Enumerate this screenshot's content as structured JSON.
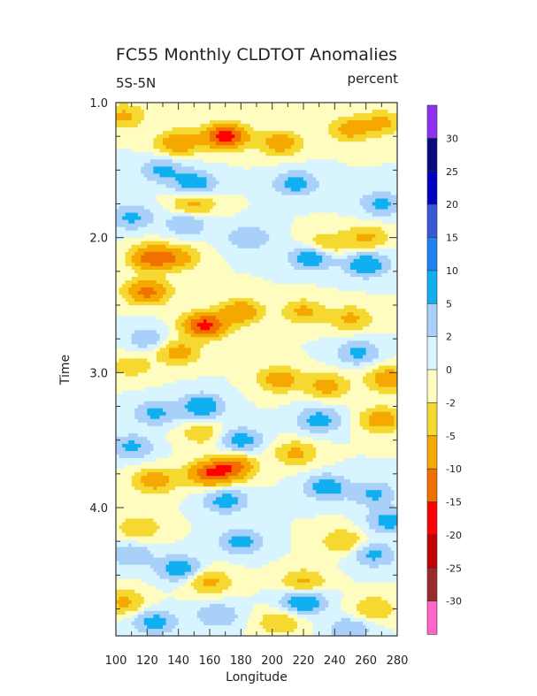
{
  "chart_data": {
    "type": "heatmap",
    "title": "FC55 Monthly CLDTOT Anomalies",
    "region_label": "5S-5N",
    "units_label": "percent",
    "xlabel": "Longitude",
    "ylabel": "Time",
    "xlim": [
      100,
      280
    ],
    "ylim": [
      1.0,
      4.95
    ],
    "y_inverted": true,
    "x_ticks": [
      "100",
      "120",
      "140",
      "160",
      "180",
      "200",
      "220",
      "240",
      "260",
      "280"
    ],
    "y_ticks": [
      "1.0",
      "2.0",
      "3.0",
      "4.0"
    ],
    "colorbar": {
      "labels": [
        "-30",
        "-25",
        "-20",
        "-15",
        "-10",
        "-5",
        "-2",
        "0",
        "2",
        "5",
        "10",
        "15",
        "20",
        "25",
        "30"
      ],
      "levels": [
        -30,
        -25,
        -20,
        -15,
        -10,
        -5,
        -2,
        0,
        2,
        5,
        10,
        15,
        20,
        25,
        30
      ],
      "colors_low_to_high": [
        "#ff66cc",
        "#9b2a2a",
        "#c40000",
        "#ff0000",
        "#f07000",
        "#f5a800",
        "#f5d830",
        "#fffcc0",
        "#d8f4ff",
        "#a8d0f8",
        "#10b0f0",
        "#2080f0",
        "#3858d8",
        "#0000c0",
        "#0a0a80",
        "#9030f0"
      ]
    },
    "features": [
      {
        "lon": 170,
        "time": 1.25,
        "value": -18
      },
      {
        "lon": 157,
        "time": 2.65,
        "value": -17
      },
      {
        "lon": 123,
        "time": 2.15,
        "value": -13
      },
      {
        "lon": 120,
        "time": 2.4,
        "value": -12
      },
      {
        "lon": 160,
        "time": 3.75,
        "value": -14
      },
      {
        "lon": 175,
        "time": 3.7,
        "value": -12
      },
      {
        "lon": 140,
        "time": 1.3,
        "value": -9
      },
      {
        "lon": 205,
        "time": 1.3,
        "value": -8
      },
      {
        "lon": 250,
        "time": 1.2,
        "value": -7
      },
      {
        "lon": 150,
        "time": 1.75,
        "value": -6
      },
      {
        "lon": 105,
        "time": 1.1,
        "value": -6
      },
      {
        "lon": 270,
        "time": 1.15,
        "value": -6
      },
      {
        "lon": 140,
        "time": 2.15,
        "value": -7
      },
      {
        "lon": 180,
        "time": 2.55,
        "value": -9
      },
      {
        "lon": 220,
        "time": 2.55,
        "value": -6
      },
      {
        "lon": 250,
        "time": 2.6,
        "value": -6
      },
      {
        "lon": 140,
        "time": 2.85,
        "value": -7
      },
      {
        "lon": 205,
        "time": 3.05,
        "value": -8
      },
      {
        "lon": 235,
        "time": 3.1,
        "value": -7
      },
      {
        "lon": 275,
        "time": 3.05,
        "value": -9
      },
      {
        "lon": 270,
        "time": 3.35,
        "value": -8
      },
      {
        "lon": 125,
        "time": 3.8,
        "value": -8
      },
      {
        "lon": 215,
        "time": 3.6,
        "value": -6
      },
      {
        "lon": 115,
        "time": 4.15,
        "value": -5
      },
      {
        "lon": 245,
        "time": 4.25,
        "value": -5
      },
      {
        "lon": 160,
        "time": 4.55,
        "value": -6
      },
      {
        "lon": 220,
        "time": 4.55,
        "value": -6
      },
      {
        "lon": 105,
        "time": 4.7,
        "value": -6
      },
      {
        "lon": 265,
        "time": 4.75,
        "value": -5
      },
      {
        "lon": 205,
        "time": 4.85,
        "value": -5
      },
      {
        "lon": 260,
        "time": 2.0,
        "value": -6
      },
      {
        "lon": 235,
        "time": 2.05,
        "value": -5
      },
      {
        "lon": 110,
        "time": 2.95,
        "value": -4
      },
      {
        "lon": 155,
        "time": 3.45,
        "value": -4
      },
      {
        "lon": 150,
        "time": 1.6,
        "value": 8
      },
      {
        "lon": 215,
        "time": 1.6,
        "value": 7
      },
      {
        "lon": 130,
        "time": 1.5,
        "value": 6
      },
      {
        "lon": 110,
        "time": 1.85,
        "value": 6
      },
      {
        "lon": 145,
        "time": 1.9,
        "value": 5
      },
      {
        "lon": 225,
        "time": 2.15,
        "value": 8
      },
      {
        "lon": 260,
        "time": 2.2,
        "value": 9
      },
      {
        "lon": 270,
        "time": 1.75,
        "value": 6
      },
      {
        "lon": 185,
        "time": 2.0,
        "value": 5
      },
      {
        "lon": 255,
        "time": 2.85,
        "value": 6
      },
      {
        "lon": 120,
        "time": 2.75,
        "value": 4
      },
      {
        "lon": 155,
        "time": 3.25,
        "value": 9
      },
      {
        "lon": 125,
        "time": 3.3,
        "value": 6
      },
      {
        "lon": 230,
        "time": 3.35,
        "value": 7
      },
      {
        "lon": 180,
        "time": 3.5,
        "value": 7
      },
      {
        "lon": 110,
        "time": 3.55,
        "value": 6
      },
      {
        "lon": 235,
        "time": 3.85,
        "value": 8
      },
      {
        "lon": 170,
        "time": 3.95,
        "value": 7
      },
      {
        "lon": 265,
        "time": 3.9,
        "value": 6
      },
      {
        "lon": 180,
        "time": 4.25,
        "value": 7
      },
      {
        "lon": 140,
        "time": 4.45,
        "value": 8
      },
      {
        "lon": 265,
        "time": 4.35,
        "value": 6
      },
      {
        "lon": 275,
        "time": 4.1,
        "value": 7
      },
      {
        "lon": 220,
        "time": 4.7,
        "value": 9
      },
      {
        "lon": 125,
        "time": 4.85,
        "value": 7
      },
      {
        "lon": 110,
        "time": 4.35,
        "value": 5
      },
      {
        "lon": 250,
        "time": 4.9,
        "value": 5
      },
      {
        "lon": 165,
        "time": 4.8,
        "value": 5
      }
    ]
  }
}
